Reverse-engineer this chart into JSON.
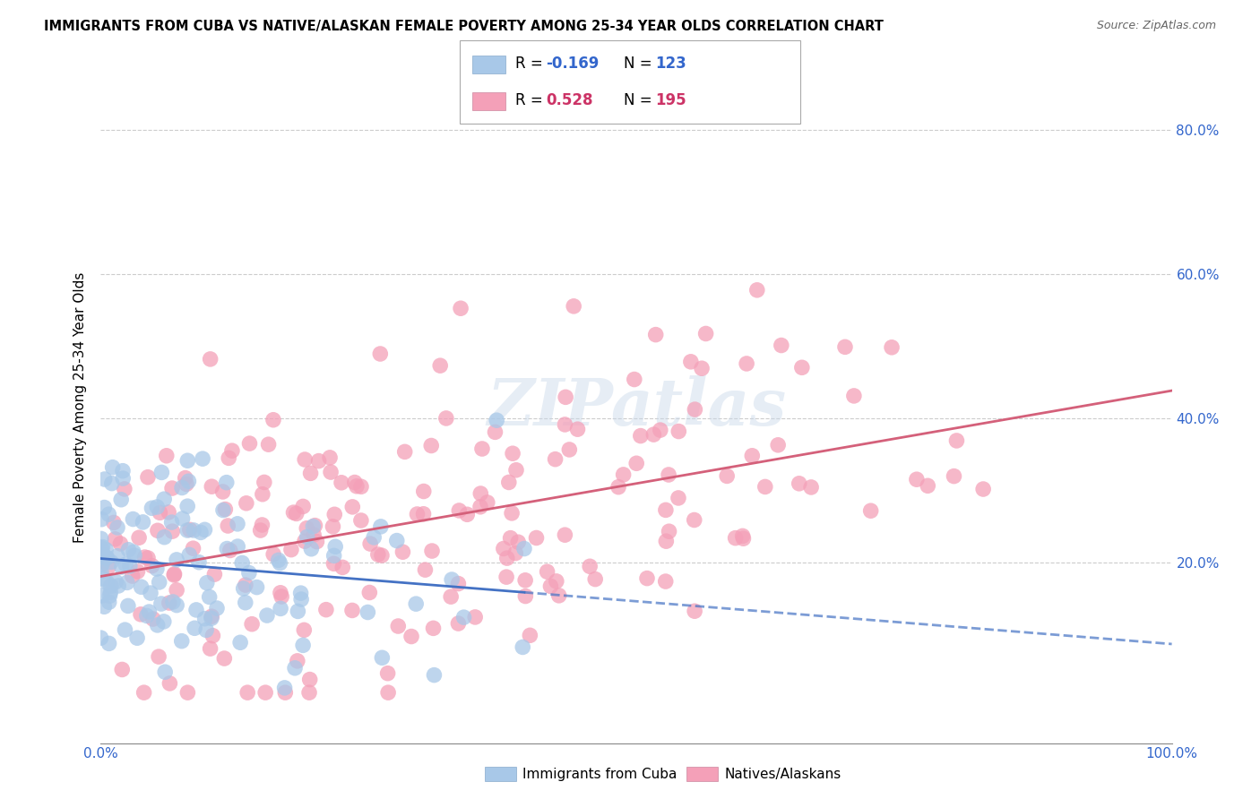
{
  "title": "IMMIGRANTS FROM CUBA VS NATIVE/ALASKAN FEMALE POVERTY AMONG 25-34 YEAR OLDS CORRELATION CHART",
  "source": "Source: ZipAtlas.com",
  "ylabel": "Female Poverty Among 25-34 Year Olds",
  "ytick_labels": [
    "20.0%",
    "40.0%",
    "60.0%",
    "80.0%"
  ],
  "ytick_values": [
    0.2,
    0.4,
    0.6,
    0.8
  ],
  "legend_label1": "Immigrants from Cuba",
  "legend_label2": "Natives/Alaskans",
  "r1": "-0.169",
  "n1": "123",
  "r2": "0.528",
  "n2": "195",
  "color_cuba": "#a8c8e8",
  "color_native": "#f4a0b8",
  "color_line_cuba": "#4472c4",
  "color_line_native": "#d4607a",
  "color_r1": "#3366cc",
  "color_r2": "#cc3366",
  "watermark": "ZIPatlas",
  "xlim": [
    0.0,
    1.0
  ],
  "ylim": [
    -0.05,
    0.88
  ],
  "seed": 42,
  "cuba_slope": -0.09,
  "cuba_intercept": 0.215,
  "native_slope": 0.22,
  "native_intercept": 0.195
}
